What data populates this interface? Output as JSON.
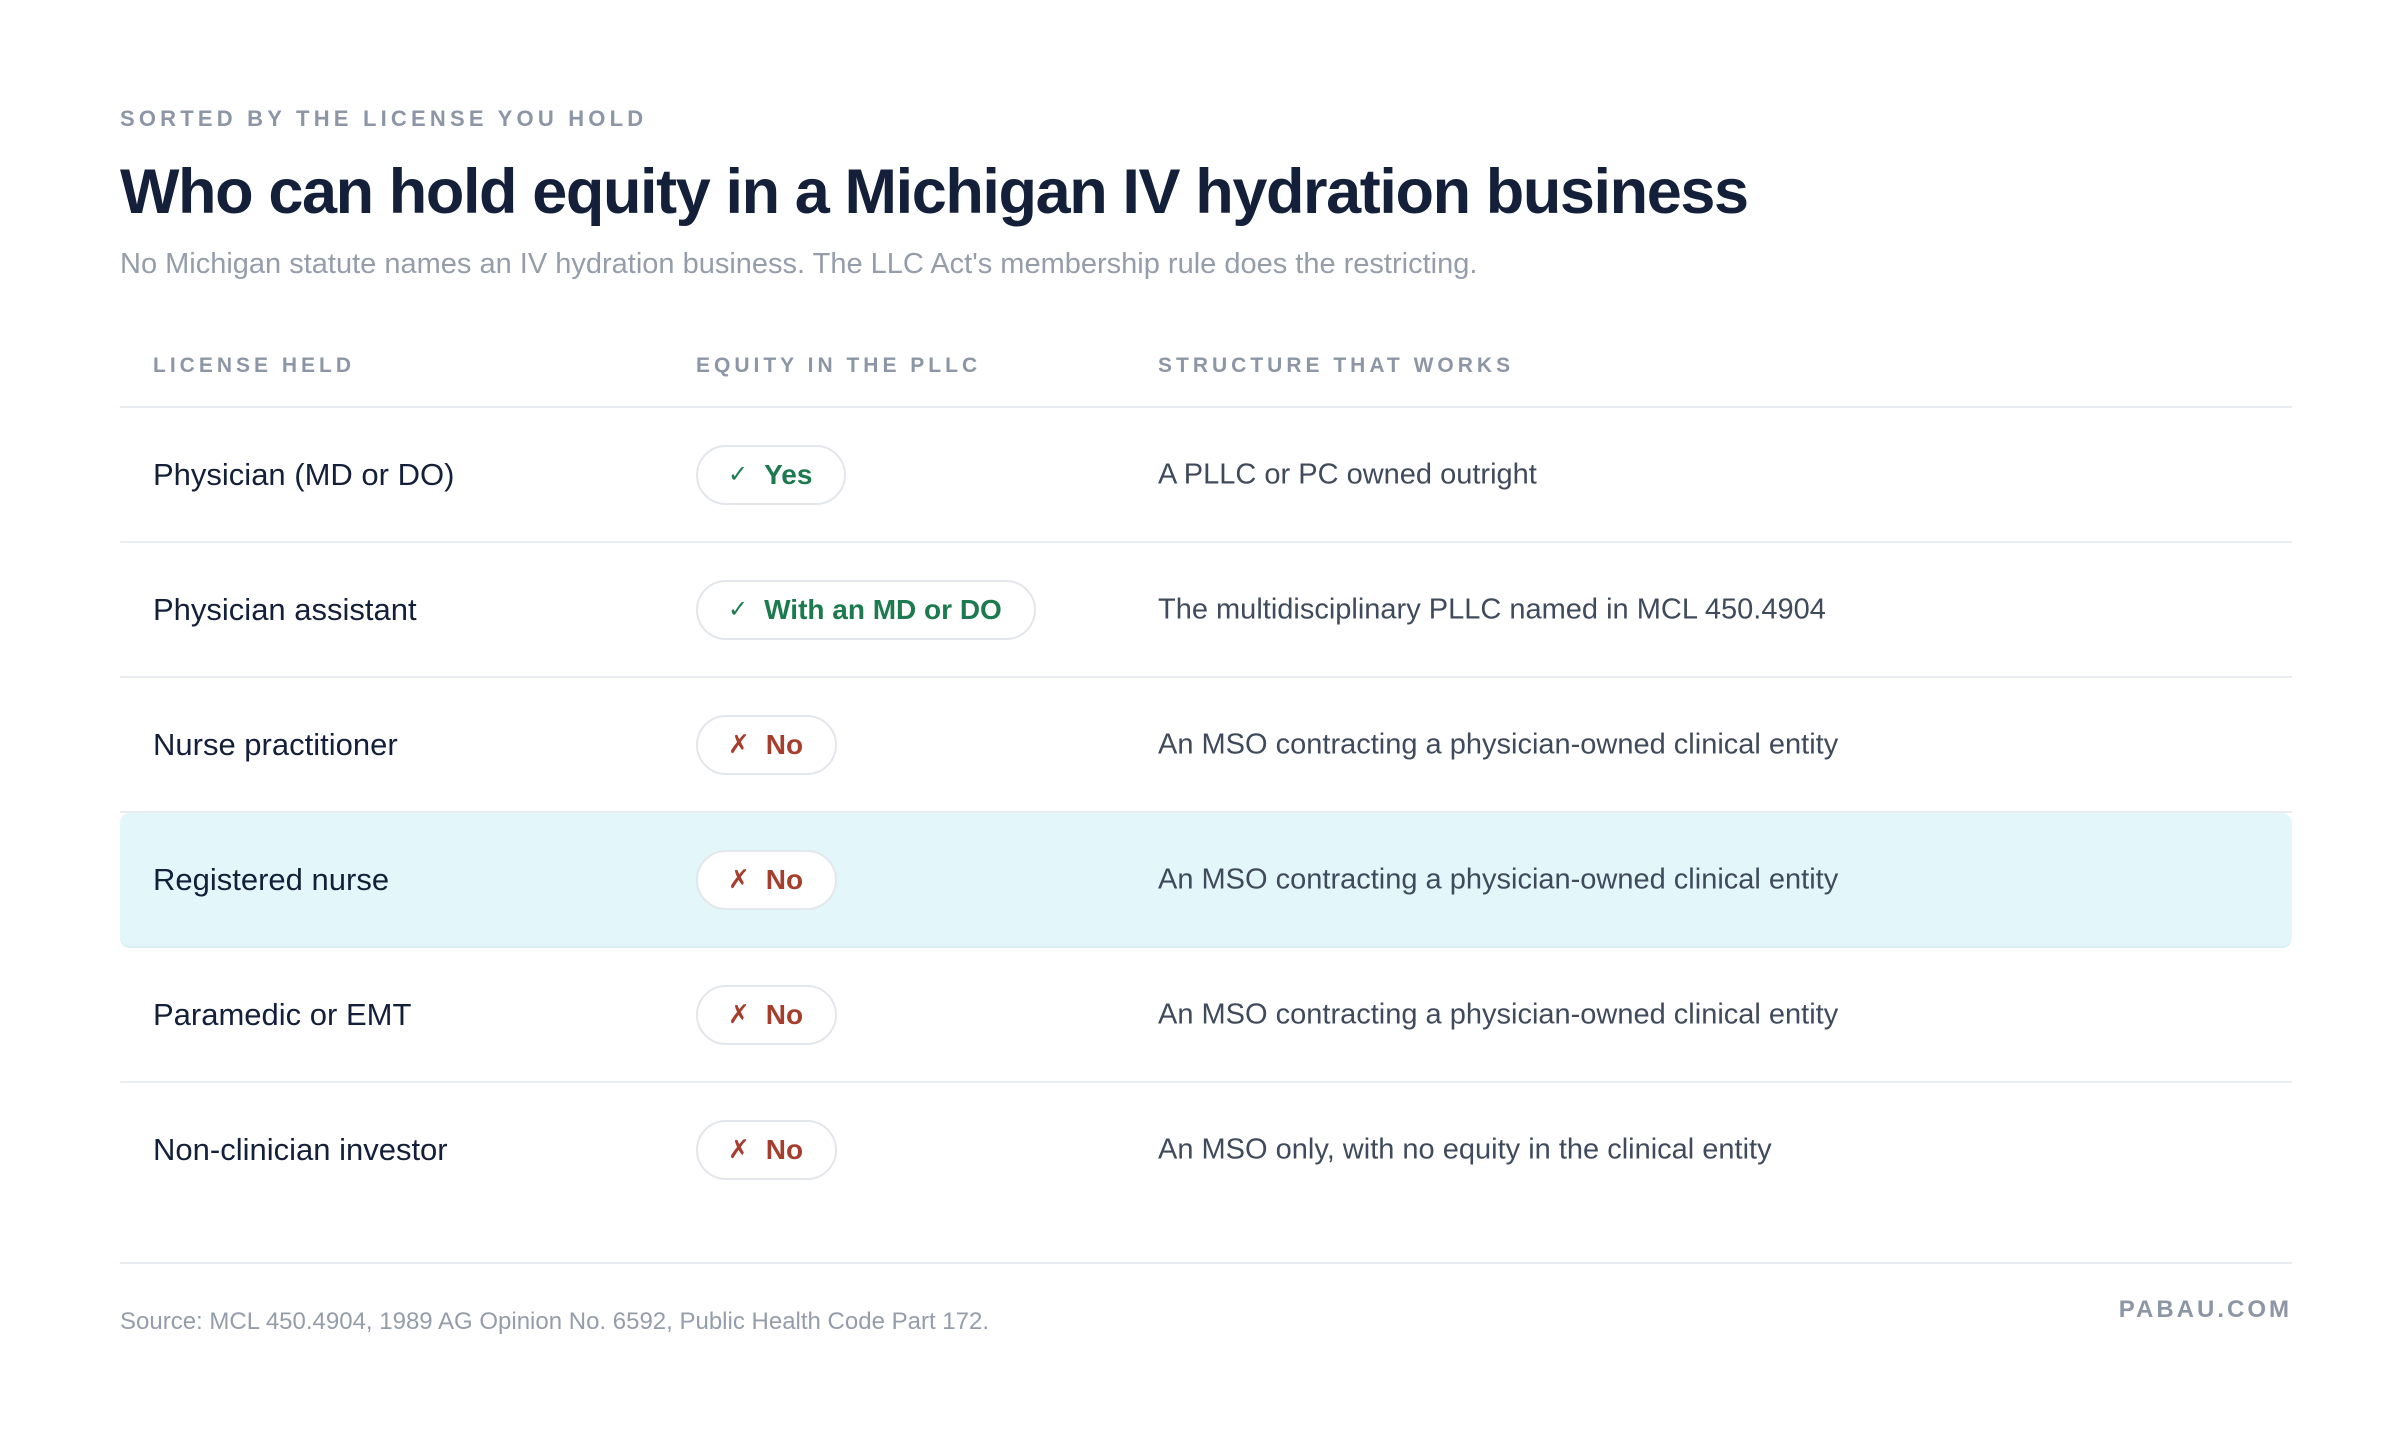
{
  "header": {
    "eyebrow": "SORTED BY THE LICENSE YOU HOLD",
    "title": "Who can hold equity in a Michigan IV hydration business",
    "subtitle": "No Michigan statute names an IV hydration business. The LLC Act's membership rule does the restricting."
  },
  "table": {
    "columns": {
      "license": "LICENSE HELD",
      "equity": "EQUITY IN THE PLLC",
      "structure": "STRUCTURE THAT WORKS"
    },
    "rows": [
      {
        "license": "Physician (MD or DO)",
        "equity_mark": "✓",
        "equity": "Yes",
        "status": "yes",
        "structure": "A PLLC or PC owned outright",
        "highlighted": false
      },
      {
        "license": "Physician assistant",
        "equity_mark": "✓",
        "equity": "With an MD or DO",
        "status": "yes",
        "structure": "The multidisciplinary PLLC named in MCL 450.4904",
        "highlighted": false
      },
      {
        "license": "Nurse practitioner",
        "equity_mark": "✗",
        "equity": "No",
        "status": "no",
        "structure": "An MSO contracting a physician-owned clinical entity",
        "highlighted": false
      },
      {
        "license": "Registered nurse",
        "equity_mark": "✗",
        "equity": "No",
        "status": "no",
        "structure": "An MSO contracting a physician-owned clinical entity",
        "highlighted": true
      },
      {
        "license": "Paramedic or EMT",
        "equity_mark": "✗",
        "equity": "No",
        "status": "no",
        "structure": "An MSO contracting a physician-owned clinical entity",
        "highlighted": false
      },
      {
        "license": "Non-clinician investor",
        "equity_mark": "✗",
        "equity": "No",
        "status": "no",
        "structure": "An MSO only, with no equity in the clinical entity",
        "highlighted": false
      }
    ]
  },
  "footer": {
    "source": "Source: MCL 450.4904, 1989 AG Opinion No. 6592, Public Health Code Part 172.",
    "brand": "PABAU.COM"
  },
  "colors": {
    "yes": "#1d7a4f",
    "no": "#a63e2e",
    "highlight_row": "#e3f6f9"
  }
}
